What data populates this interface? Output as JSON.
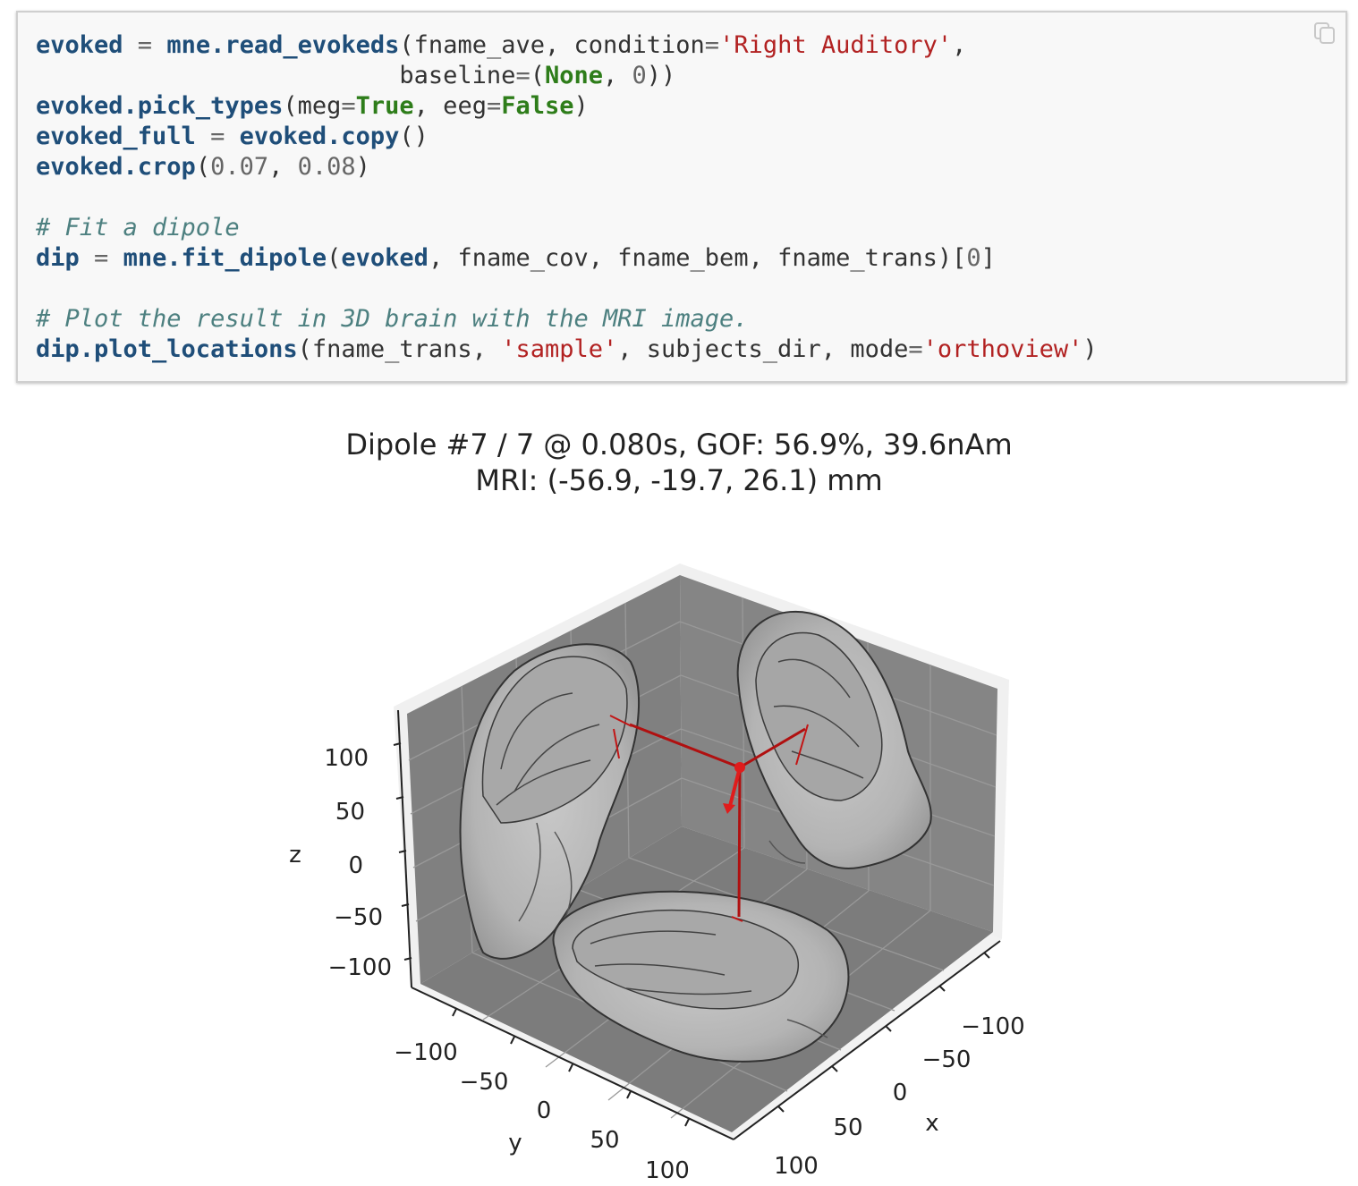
{
  "code_cell": {
    "lines": [
      [
        [
          "name",
          "evoked"
        ],
        [
          "op",
          " = "
        ],
        [
          "name",
          "mne.read_evokeds"
        ],
        [
          "plain",
          "(fname_ave, condition"
        ],
        [
          "op",
          "="
        ],
        [
          "str",
          "'Right Auditory'"
        ],
        [
          "plain",
          ","
        ]
      ],
      [
        [
          "plain",
          "                         baseline"
        ],
        [
          "op",
          "="
        ],
        [
          "plain",
          "("
        ],
        [
          "kw",
          "None"
        ],
        [
          "plain",
          ", "
        ],
        [
          "num",
          "0"
        ],
        [
          "plain",
          "))"
        ]
      ],
      [
        [
          "name",
          "evoked.pick_types"
        ],
        [
          "plain",
          "(meg"
        ],
        [
          "op",
          "="
        ],
        [
          "kw",
          "True"
        ],
        [
          "plain",
          ", eeg"
        ],
        [
          "op",
          "="
        ],
        [
          "kw",
          "False"
        ],
        [
          "plain",
          ")"
        ]
      ],
      [
        [
          "name",
          "evoked_full"
        ],
        [
          "op",
          " = "
        ],
        [
          "name",
          "evoked.copy"
        ],
        [
          "plain",
          "()"
        ]
      ],
      [
        [
          "name",
          "evoked.crop"
        ],
        [
          "plain",
          "("
        ],
        [
          "num",
          "0.07"
        ],
        [
          "plain",
          ", "
        ],
        [
          "num",
          "0.08"
        ],
        [
          "plain",
          ")"
        ]
      ],
      [],
      [
        [
          "com",
          "# Fit a dipole"
        ]
      ],
      [
        [
          "name",
          "dip"
        ],
        [
          "op",
          " = "
        ],
        [
          "name",
          "mne.fit_dipole"
        ],
        [
          "plain",
          "("
        ],
        [
          "name",
          "evoked"
        ],
        [
          "plain",
          ", fname_cov, fname_bem, fname_trans)["
        ],
        [
          "num",
          "0"
        ],
        [
          "plain",
          "]"
        ]
      ],
      [],
      [
        [
          "com",
          "# Plot the result in 3D brain with the MRI image."
        ]
      ],
      [
        [
          "name",
          "dip.plot_locations"
        ],
        [
          "plain",
          "(fname_trans, "
        ],
        [
          "str",
          "'sample'"
        ],
        [
          "plain",
          ", subjects_dir, mode"
        ],
        [
          "op",
          "="
        ],
        [
          "str",
          "'orthoview'"
        ],
        [
          "plain",
          ")"
        ]
      ]
    ],
    "copy_icon": "copy-icon"
  },
  "figure": {
    "title_line1": "Dipole #7 / 7 @ 0.080s, GOF: 56.9%, 39.6nAm",
    "title_line2": "MRI: (-56.9, -19.7, 26.1) mm",
    "z_label": "z",
    "y_label": "y",
    "x_label": "x",
    "z_ticks": [
      "100",
      "50",
      "0",
      "−50",
      "−100"
    ],
    "y_ticks": [
      "−100",
      "−50",
      "0",
      "50",
      "100"
    ],
    "x_ticks": [
      "−100",
      "−50",
      "0",
      "50",
      "100"
    ],
    "pane_color": "#808080",
    "dipole_color": "#d42020"
  }
}
